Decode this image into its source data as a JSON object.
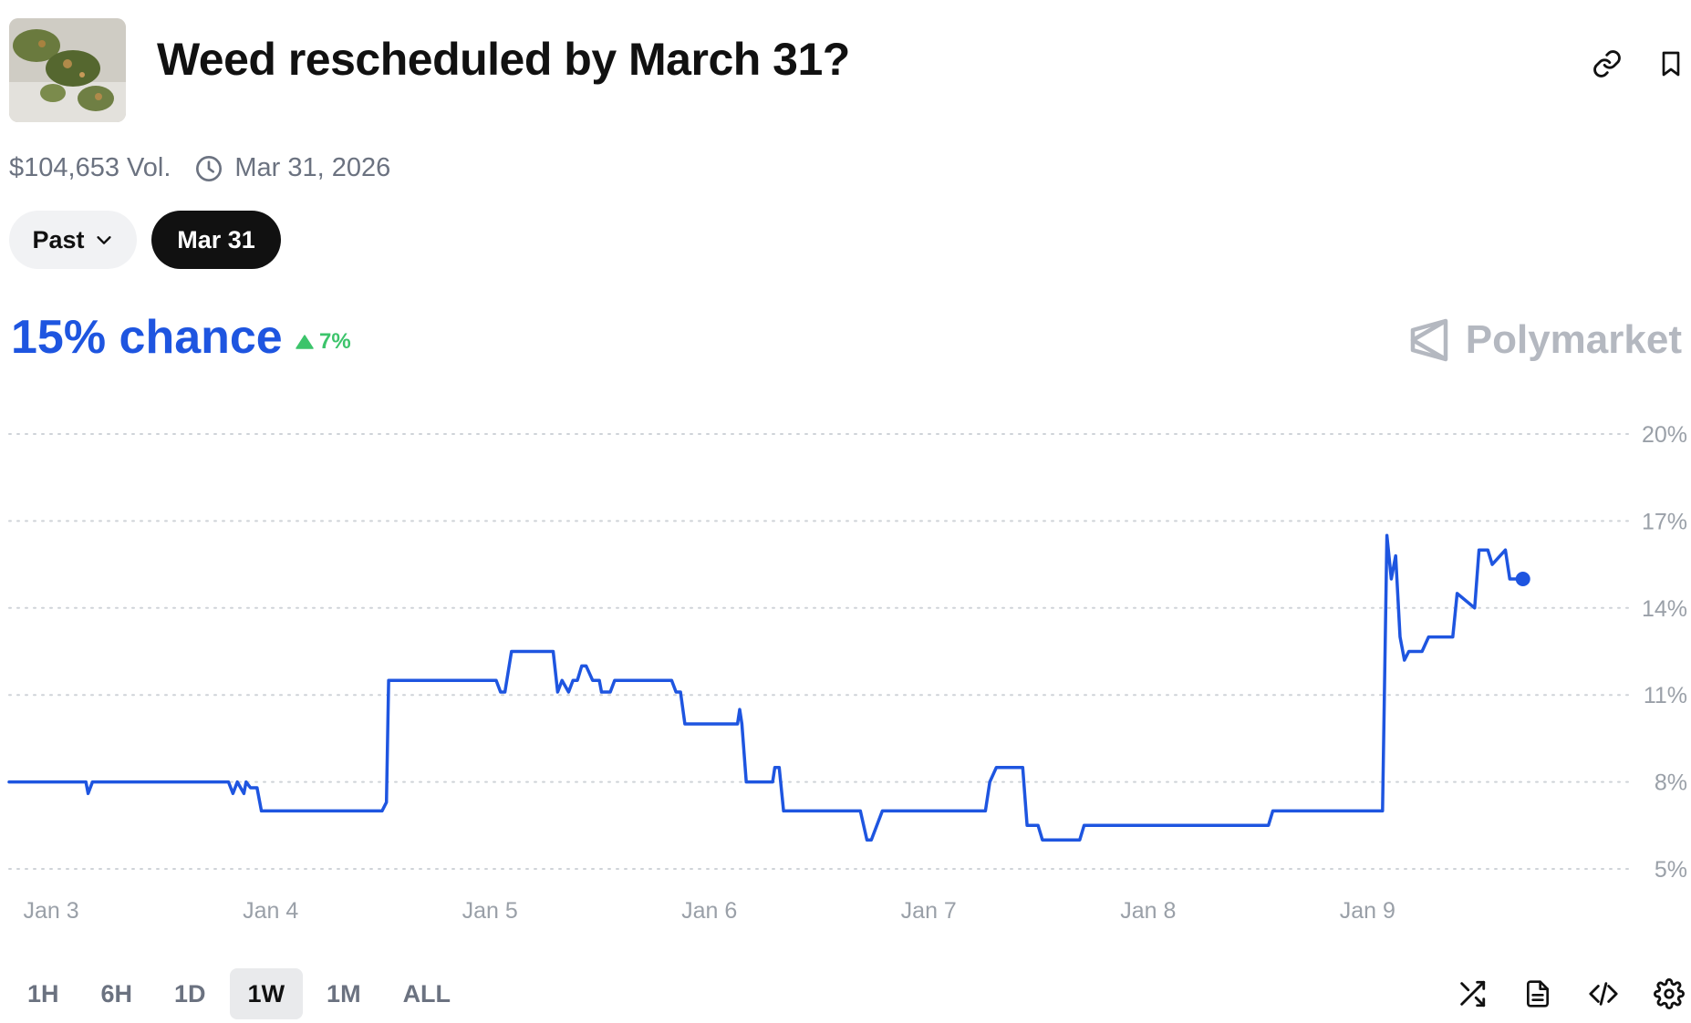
{
  "header": {
    "title": "Weed rescheduled by March 31?",
    "thumbnail_icon": "cannabis-photo-icon"
  },
  "meta": {
    "volume": "$104,653 Vol.",
    "end_date": "Mar 31, 2026"
  },
  "date_pills": [
    {
      "label": "Past",
      "active": false
    },
    {
      "label": "Mar 31",
      "active": true
    }
  ],
  "summary": {
    "chance": "15% chance",
    "change": "7%",
    "change_direction": "up",
    "brand": "Polymarket"
  },
  "colors": {
    "line": "#1e55e0",
    "chance": "#1e55e0",
    "change": "#3cc46b",
    "grid": "#cfd3d8",
    "axis_text": "#9aa0a8"
  },
  "chart_data": {
    "type": "line",
    "title": "",
    "xlabel": "",
    "ylabel": "",
    "x_ticks": [
      "Jan 3",
      "Jan 4",
      "Jan 5",
      "Jan 6",
      "Jan 7",
      "Jan 8",
      "Jan 9"
    ],
    "y_ticks": [
      "20%",
      "17%",
      "14%",
      "11%",
      "8%",
      "5%"
    ],
    "ylim": [
      5,
      20
    ],
    "grid": "horizontal-dotted",
    "legend": "none",
    "series": [
      {
        "name": "",
        "x": [
          2.8,
          3.15,
          3.16,
          3.18,
          3.2,
          3.8,
          3.82,
          3.84,
          3.87,
          3.88,
          3.9,
          3.93,
          3.95,
          4.5,
          4.52,
          4.53,
          5.02,
          5.04,
          5.06,
          5.09,
          5.1,
          5.28,
          5.3,
          5.32,
          5.35,
          5.37,
          5.39,
          5.41,
          5.43,
          5.46,
          5.49,
          5.5,
          5.54,
          5.56,
          5.6,
          5.62,
          5.82,
          5.84,
          5.86,
          5.88,
          6.12,
          6.13,
          6.14,
          6.16,
          6.28,
          6.29,
          6.31,
          6.33,
          6.68,
          6.71,
          6.73,
          6.78,
          6.8,
          7.25,
          7.27,
          7.3,
          7.4,
          7.42,
          7.44,
          7.49,
          7.51,
          7.68,
          7.7,
          7.72,
          8.54,
          8.56,
          8.58,
          9.06,
          9.08,
          9.1,
          9.12,
          9.14,
          9.16,
          9.18,
          9.2,
          9.24,
          9.27,
          9.38,
          9.4,
          9.48,
          9.5,
          9.52,
          9.54,
          9.56,
          9.62,
          9.64,
          9.66,
          9.68,
          9.7
        ],
        "values": [
          8,
          8,
          7.6,
          8,
          8,
          8,
          7.6,
          8,
          7.6,
          8,
          7.8,
          7.8,
          7,
          7,
          7.3,
          11.5,
          11.5,
          11.1,
          11.1,
          12.5,
          12.5,
          12.5,
          11.1,
          11.5,
          11.1,
          11.5,
          11.5,
          12,
          12,
          11.5,
          11.5,
          11.1,
          11.1,
          11.5,
          11.5,
          11.5,
          11.5,
          11.1,
          11.1,
          10,
          10,
          10.5,
          10,
          8,
          8,
          8.5,
          8.5,
          7,
          7,
          6,
          6,
          7,
          7,
          7,
          8,
          8.5,
          8.5,
          8.5,
          6.5,
          6.5,
          6,
          6,
          6.5,
          6.5,
          6.5,
          7,
          7,
          7,
          16.5,
          15,
          15.8,
          13,
          12.2,
          12.5,
          12.5,
          12.5,
          13,
          13,
          14.5,
          14,
          16,
          16,
          16,
          15.5,
          16,
          15,
          15,
          15,
          15
        ]
      }
    ],
    "x_range": [
      2.8,
      10.2
    ],
    "end_marker": {
      "x": 9.7,
      "y": 15
    }
  },
  "time_ranges": [
    {
      "label": "1H",
      "active": false
    },
    {
      "label": "6H",
      "active": false
    },
    {
      "label": "1D",
      "active": false
    },
    {
      "label": "1W",
      "active": true
    },
    {
      "label": "1M",
      "active": false
    },
    {
      "label": "ALL",
      "active": false
    }
  ],
  "toolbar_icons": [
    "shuffle-icon",
    "document-icon",
    "code-icon",
    "gear-icon"
  ]
}
